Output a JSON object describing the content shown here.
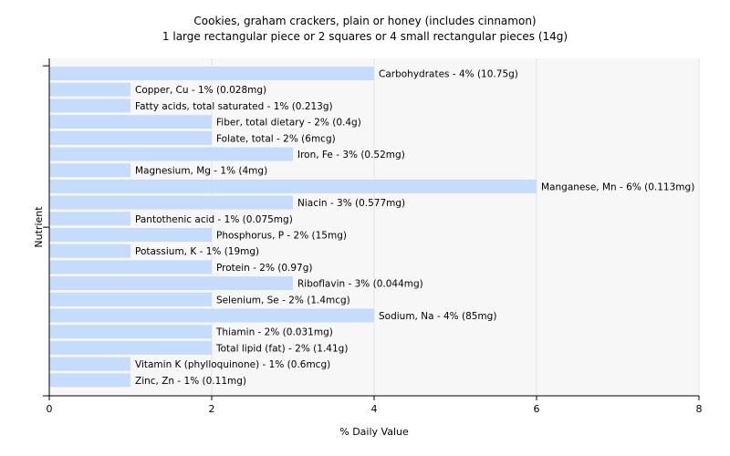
{
  "chart_data": {
    "type": "bar",
    "orientation": "horizontal",
    "title": "Cookies, graham crackers, plain or honey (includes cinnamon)",
    "subtitle": "1 large rectangular piece or 2 squares or 4 small rectangular pieces (14g)",
    "xlabel": "% Daily Value",
    "ylabel": "Nutrient",
    "xlim": [
      0,
      8
    ],
    "xticks": [
      "0",
      "2",
      "4",
      "6",
      "8"
    ],
    "grid": true,
    "colors": {
      "bar": "#c6dcfc",
      "grid": "#e6e6e6",
      "plot_bg": "#f7f7f7"
    },
    "categories": [
      "Carbohydrates",
      "Copper, Cu",
      "Fatty acids, total saturated",
      "Fiber, total dietary",
      "Folate, total",
      "Iron, Fe",
      "Magnesium, Mg",
      "Manganese, Mn",
      "Niacin",
      "Pantothenic acid",
      "Phosphorus, P",
      "Potassium, K",
      "Protein",
      "Riboflavin",
      "Selenium, Se",
      "Sodium, Na",
      "Thiamin",
      "Total lipid (fat)",
      "Vitamin K (phylloquinone)",
      "Zinc, Zn"
    ],
    "values": [
      4,
      1,
      1,
      2,
      2,
      3,
      1,
      6,
      3,
      1,
      2,
      1,
      2,
      3,
      2,
      4,
      2,
      2,
      1,
      1
    ],
    "labels": [
      "Carbohydrates - 4% (10.75g)",
      "Copper, Cu - 1% (0.028mg)",
      "Fatty acids, total saturated - 1% (0.213g)",
      "Fiber, total dietary - 2% (0.4g)",
      "Folate, total - 2% (6mcg)",
      "Iron, Fe - 3% (0.52mg)",
      "Magnesium, Mg - 1% (4mg)",
      "Manganese, Mn - 6% (0.113mg)",
      "Niacin - 3% (0.577mg)",
      "Pantothenic acid - 1% (0.075mg)",
      "Phosphorus, P - 2% (15mg)",
      "Potassium, K - 1% (19mg)",
      "Protein - 2% (0.97g)",
      "Riboflavin - 3% (0.044mg)",
      "Selenium, Se - 2% (1.4mcg)",
      "Sodium, Na - 4% (85mg)",
      "Thiamin - 2% (0.031mg)",
      "Total lipid (fat) - 2% (1.41g)",
      "Vitamin K (phylloquinone) - 1% (0.6mcg)",
      "Zinc, Zn - 1% (0.11mg)"
    ]
  }
}
